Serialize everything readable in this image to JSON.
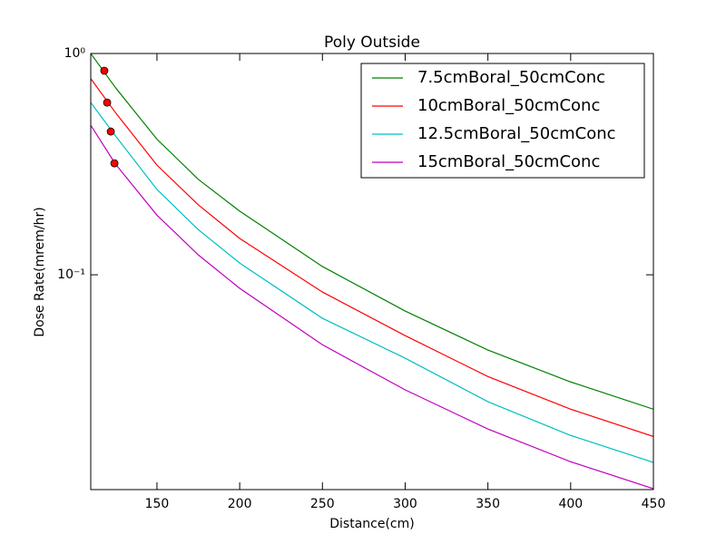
{
  "chart_data": {
    "type": "line",
    "title": "Poly Outside",
    "xlabel": "Distance(cm)",
    "ylabel": "Dose Rate(mrem/hr)",
    "x": [
      110,
      125,
      150,
      175,
      200,
      250,
      300,
      350,
      400,
      450
    ],
    "series": [
      {
        "name": "7.5cmBoral_50cmConc",
        "color": "#008000",
        "values": [
          1.0,
          0.7,
          0.41,
          0.27,
          0.194,
          0.109,
          0.0686,
          0.0457,
          0.0328,
          0.0247
        ]
      },
      {
        "name": "10cmBoral_50cmConc",
        "color": "#ff0000",
        "values": [
          0.77,
          0.54,
          0.313,
          0.207,
          0.146,
          0.0836,
          0.0531,
          0.0347,
          0.0247,
          0.0186
        ]
      },
      {
        "name": "12.5cmBoral_50cmConc",
        "color": "#00bfbf",
        "values": [
          0.6,
          0.424,
          0.243,
          0.16,
          0.113,
          0.0636,
          0.042,
          0.0267,
          0.0188,
          0.0142
        ]
      },
      {
        "name": "15cmBoral_50cmConc",
        "color": "#bf00bf",
        "values": [
          0.474,
          0.316,
          0.186,
          0.123,
          0.0869,
          0.0483,
          0.0302,
          0.0201,
          0.0143,
          0.0108
        ]
      }
    ],
    "points": {
      "color": "#ff0000",
      "x": [
        118.2,
        119.9,
        122.1,
        124.3
      ],
      "y": [
        0.836,
        0.6,
        0.444,
        0.319
      ]
    },
    "xlim": [
      110,
      450
    ],
    "xticks": [
      150,
      200,
      250,
      300,
      350,
      400,
      450
    ],
    "ylim": [
      0.0107,
      1
    ],
    "yscale": "log",
    "yticks": [
      {
        "value": 1,
        "label": "10⁰"
      },
      {
        "value": 0.1,
        "label": "10⁻¹"
      }
    ],
    "legend": "upper right"
  }
}
